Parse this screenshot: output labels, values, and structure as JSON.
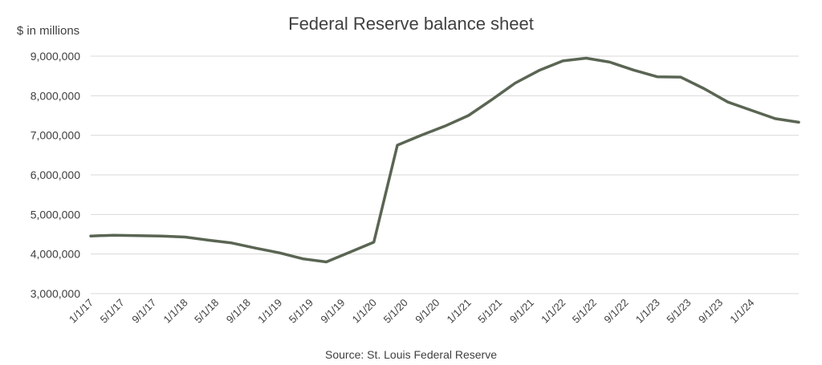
{
  "chart_data": {
    "type": "line",
    "title": "Federal Reserve balance sheet",
    "ylabel": "$ in millions",
    "source": "Source: St. Louis Federal Reserve",
    "ylim": [
      3000000,
      9000000
    ],
    "yticks": [
      3000000,
      4000000,
      5000000,
      6000000,
      7000000,
      8000000,
      9000000
    ],
    "ytick_labels": [
      "3,000,000",
      "4,000,000",
      "5,000,000",
      "6,000,000",
      "7,000,000",
      "8,000,000",
      "9,000,000"
    ],
    "xlim": [
      "1/1/17",
      "7/1/24"
    ],
    "xtick_labels": [
      "1/1/17",
      "5/1/17",
      "9/1/17",
      "1/1/18",
      "5/1/18",
      "9/1/18",
      "1/1/19",
      "5/1/19",
      "9/1/19",
      "1/1/20",
      "5/1/20",
      "9/1/20",
      "1/1/21",
      "5/1/21",
      "9/1/21",
      "1/1/22",
      "5/1/22",
      "9/1/22",
      "1/1/23",
      "5/1/23",
      "9/1/23",
      "1/1/24"
    ],
    "grid": true,
    "line_color": "#5a6553",
    "x": [
      "1/1/17",
      "4/1/17",
      "7/1/17",
      "10/1/17",
      "1/1/18",
      "4/1/18",
      "7/1/18",
      "10/1/18",
      "1/1/19",
      "4/1/19",
      "7/1/19",
      "10/1/19",
      "1/1/20",
      "4/1/20",
      "7/1/20",
      "10/1/20",
      "1/1/21",
      "4/1/21",
      "7/1/21",
      "10/1/21",
      "1/1/22",
      "4/1/22",
      "7/1/22",
      "10/1/22",
      "1/1/23",
      "4/1/23",
      "7/1/23",
      "10/1/23",
      "1/1/24",
      "4/1/24",
      "7/1/24"
    ],
    "values": [
      4455000,
      4475000,
      4465000,
      4455000,
      4430000,
      4350000,
      4280000,
      4150000,
      4030000,
      3880000,
      3800000,
      4050000,
      4300000,
      6750000,
      7000000,
      7230000,
      7500000,
      7900000,
      8320000,
      8640000,
      8880000,
      8950000,
      8850000,
      8650000,
      8480000,
      8470000,
      8180000,
      7840000,
      7630000,
      7420000,
      7330000
    ]
  }
}
